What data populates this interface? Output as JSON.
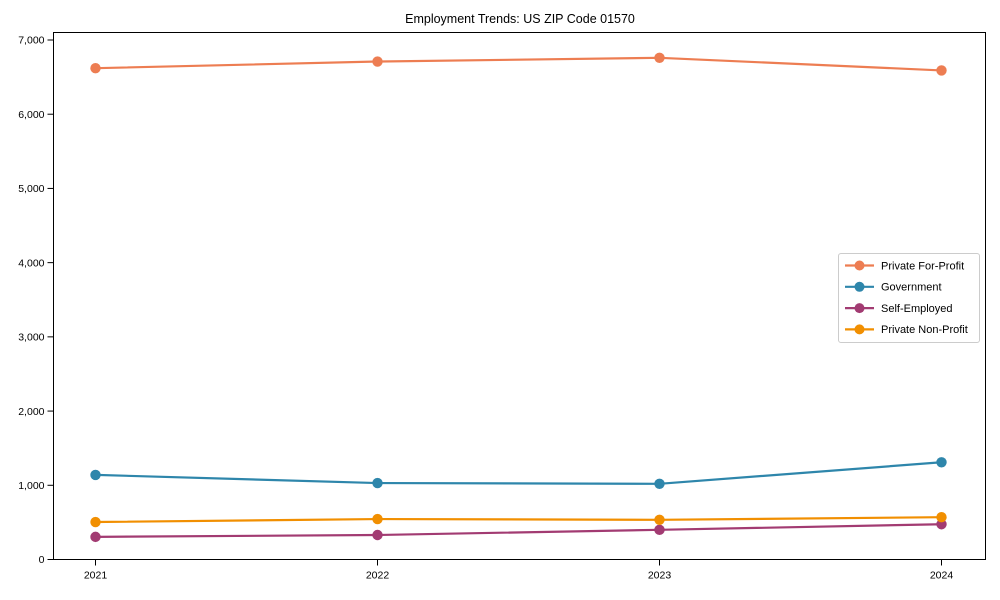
{
  "chart_data": {
    "type": "line",
    "title": "Employment Trends: US ZIP Code 01570",
    "xlabel": "",
    "ylabel": "",
    "x": [
      "2021",
      "2022",
      "2023",
      "2024"
    ],
    "yticks": [
      0,
      1000,
      2000,
      3000,
      4000,
      5000,
      6000,
      7000
    ],
    "ytick_labels": [
      "0",
      "1,000",
      "2,000",
      "3,000",
      "4,000",
      "5,000",
      "6,000",
      "7,000"
    ],
    "ylim": [
      0,
      7100
    ],
    "grid": false,
    "marker": "circle",
    "legend_position": "center-right",
    "background_color": "#ffffff",
    "axis_color": "#000000",
    "legend_border_color": "#cccccc",
    "series": [
      {
        "name": "Private For-Profit",
        "color": "#ED7D52",
        "values": [
          6620,
          6710,
          6760,
          6590
        ]
      },
      {
        "name": "Government",
        "color": "#2E86AB",
        "values": [
          1140,
          1030,
          1020,
          1310
        ]
      },
      {
        "name": "Self-Employed",
        "color": "#A23B72",
        "values": [
          305,
          330,
          400,
          475
        ]
      },
      {
        "name": "Private Non-Profit",
        "color": "#F18F01",
        "values": [
          505,
          545,
          535,
          570
        ]
      }
    ]
  }
}
